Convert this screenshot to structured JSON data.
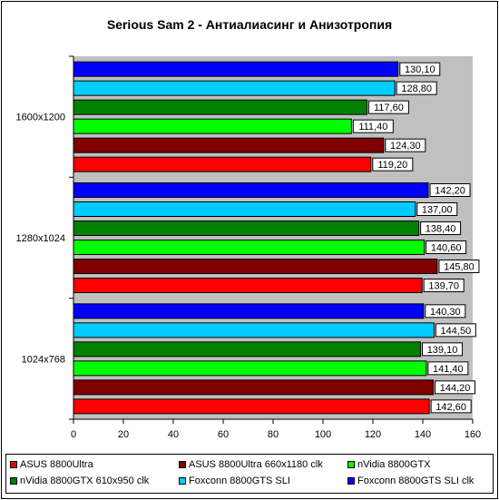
{
  "chart_data": {
    "type": "bar",
    "orientation": "horizontal",
    "title": "Serious Sam 2 - Антиалиасинг и Анизотропия",
    "xlabel": "",
    "ylabel": "",
    "xlim": [
      0,
      160
    ],
    "x_ticks": [
      "0",
      "20",
      "40",
      "60",
      "80",
      "100",
      "120",
      "140",
      "160"
    ],
    "grid": false,
    "legend_position": "bottom",
    "categories": [
      "1600x1200",
      "1280x1024",
      "1024x768"
    ],
    "series": [
      {
        "name": "ASUS 8800Ultra",
        "color": "#ff0000",
        "values": [
          119.2,
          139.7,
          142.6
        ],
        "labels": [
          "119,20",
          "139,70",
          "142,60"
        ]
      },
      {
        "name": "ASUS 8800Ultra 660x1180 clk",
        "color": "#800000",
        "values": [
          124.3,
          145.8,
          144.2
        ],
        "labels": [
          "124,30",
          "145,80",
          "144,20"
        ]
      },
      {
        "name": "nVidia 8800GTX",
        "color": "#00ff00",
        "values": [
          111.4,
          140.6,
          141.4
        ],
        "labels": [
          "111,40",
          "140,60",
          "141,40"
        ]
      },
      {
        "name": "nVidia 8800GTX 610x950 clk",
        "color": "#008000",
        "values": [
          117.6,
          138.4,
          139.1
        ],
        "labels": [
          "117,60",
          "138,40",
          "139,10"
        ]
      },
      {
        "name": "Foxconn 8800GTS SLI",
        "color": "#00ccff",
        "values": [
          128.8,
          137.0,
          144.5
        ],
        "labels": [
          "128,80",
          "137,00",
          "144,50"
        ]
      },
      {
        "name": "Foxconn 8800GTS SLI clk",
        "color": "#0000ff",
        "values": [
          130.1,
          142.2,
          140.3
        ],
        "labels": [
          "130,10",
          "142,20",
          "140,30"
        ]
      }
    ]
  }
}
